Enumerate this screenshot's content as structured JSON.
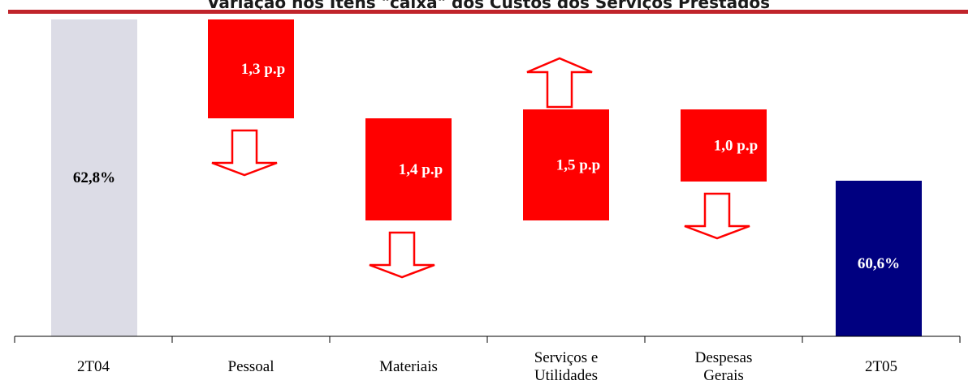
{
  "title": "Variação nos Itens \"caixa\" dos Custos dos Serviços Prestados",
  "colors": {
    "title_rule": "#c0242b",
    "start_bar": "#dcdce6",
    "end_bar": "#000080",
    "delta_bar": "#ff0000",
    "arrow_stroke": "#ff0000"
  },
  "chart_data": {
    "type": "bar",
    "subtype": "waterfall",
    "title": "Variação nos Itens \"caixa\" dos Custos dos Serviços Prestados",
    "categories": [
      "2T04",
      "Pessoal",
      "Materiais",
      "Serviços e Utilidades",
      "Despesas Gerais",
      "2T05"
    ],
    "category_lines": [
      [
        "2T04"
      ],
      [
        "Pessoal"
      ],
      [
        "Materiais"
      ],
      [
        "Serviços e",
        "Utilidades"
      ],
      [
        "Despesas",
        "Gerais"
      ],
      [
        "2T05"
      ]
    ],
    "start": {
      "category": "2T04",
      "value": 62.8,
      "label": "62,8%"
    },
    "end": {
      "category": "2T05",
      "value": 60.6,
      "label": "60,6%"
    },
    "deltas": [
      {
        "category": "Pessoal",
        "value": -1.3,
        "label": "1,3 p.p",
        "arrow": "down"
      },
      {
        "category": "Materiais",
        "value": -1.4,
        "label": "1,4 p.p",
        "arrow": "down"
      },
      {
        "category": "Serviços e Utilidades",
        "value": 1.5,
        "label": "1,5 p.p",
        "arrow": "up"
      },
      {
        "category": "Despesas Gerais",
        "value": -1.0,
        "label": "1,0 p.p",
        "arrow": "down"
      }
    ],
    "units": "p.p",
    "grid": false,
    "legend": "none"
  }
}
